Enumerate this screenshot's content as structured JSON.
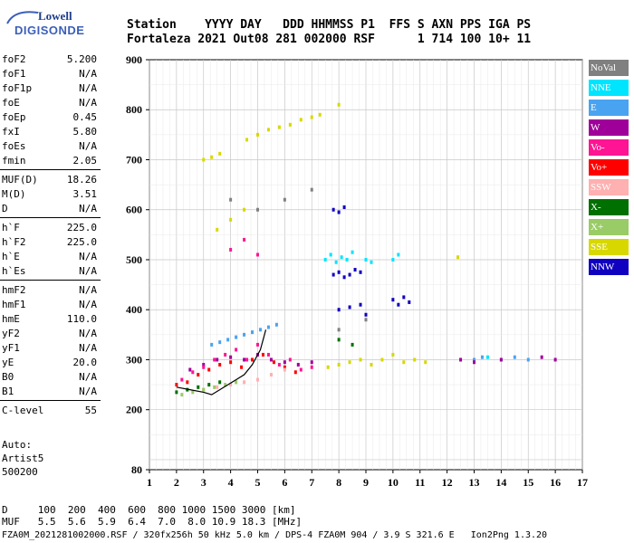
{
  "logo": {
    "brand": "Lowell",
    "name": "DIGISONDE"
  },
  "header": {
    "row1": "Station    YYYY DAY   DDD HHMMSS P1  FFS S AXN PPS IGA PS",
    "row2": "Fortaleza 2021 Out08 281 002000 RSF      1 714 100 10+ 11"
  },
  "params": {
    "group1": [
      {
        "k": "foF2",
        "v": "5.200"
      },
      {
        "k": "foF1",
        "v": "N/A"
      },
      {
        "k": "foF1p",
        "v": "N/A"
      },
      {
        "k": "foE",
        "v": "N/A"
      },
      {
        "k": "foEp",
        "v": "0.45"
      },
      {
        "k": "fxI",
        "v": "5.80"
      },
      {
        "k": "foEs",
        "v": "N/A"
      },
      {
        "k": "fmin",
        "v": "2.05"
      }
    ],
    "group2": [
      {
        "k": "MUF(D)",
        "v": "18.26"
      },
      {
        "k": "M(D)",
        "v": "3.51"
      },
      {
        "k": "D",
        "v": "N/A"
      }
    ],
    "group3": [
      {
        "k": "h`F",
        "v": "225.0"
      },
      {
        "k": "h`F2",
        "v": "225.0"
      },
      {
        "k": "h`E",
        "v": "N/A"
      },
      {
        "k": "h`Es",
        "v": "N/A"
      }
    ],
    "group4": [
      {
        "k": "hmF2",
        "v": "N/A"
      },
      {
        "k": "hmF1",
        "v": "N/A"
      },
      {
        "k": "hmE",
        "v": "110.0"
      },
      {
        "k": "yF2",
        "v": "N/A"
      },
      {
        "k": "yF1",
        "v": "N/A"
      },
      {
        "k": "yE",
        "v": "20.0"
      },
      {
        "k": "B0",
        "v": "N/A"
      },
      {
        "k": "B1",
        "v": "N/A"
      }
    ],
    "group5": [
      {
        "k": "C-level",
        "v": "55"
      }
    ]
  },
  "auto": {
    "l1": "Auto:",
    "l2": "Artist5",
    "l3": "500200"
  },
  "legend": [
    {
      "label": "NoVal",
      "color": "#808080"
    },
    {
      "label": "NNE",
      "color": "#00e5ff"
    },
    {
      "label": "E",
      "color": "#4aa3f0"
    },
    {
      "label": "W",
      "color": "#a0009a"
    },
    {
      "label": "Vo-",
      "color": "#ff1493"
    },
    {
      "label": "Vo+",
      "color": "#ff0000"
    },
    {
      "label": "SSW",
      "color": "#ffb0b0"
    },
    {
      "label": "X-",
      "color": "#007000"
    },
    {
      "label": "X+",
      "color": "#99cc66"
    },
    {
      "label": "SSE",
      "color": "#d8d800"
    },
    {
      "label": "NNW",
      "color": "#1000c0"
    }
  ],
  "footer": {
    "l1": "D     100  200  400  600  800 1000 1500 3000 [km]",
    "l2": "MUF   5.5  5.6  5.9  6.4  7.0  8.0 10.9 18.3 [MHz]",
    "l3": "FZA0M_2021281002000.RSF / 320fx256h 50 kHz 5.0 km / DPS-4 FZA0M 904 / 3.9 S 321.6 E   Ion2Png 1.3.20"
  },
  "chart_data": {
    "type": "scatter",
    "xlabel": "",
    "ylabel": "",
    "xlim": [
      1,
      17
    ],
    "ylim": [
      80,
      900
    ],
    "x_ticks": [
      1,
      2,
      3,
      4,
      5,
      6,
      7,
      8,
      9,
      10,
      11,
      12,
      13,
      14,
      15,
      16,
      17
    ],
    "y_ticks": [
      80,
      200,
      300,
      400,
      500,
      600,
      700,
      800,
      900
    ],
    "grid": true,
    "series": [
      {
        "name": "NNE",
        "color": "#00e5ff",
        "points": [
          [
            7.5,
            500
          ],
          [
            7.7,
            510
          ],
          [
            7.9,
            495
          ],
          [
            8.1,
            505
          ],
          [
            8.3,
            500
          ],
          [
            8.5,
            515
          ],
          [
            9.0,
            500
          ],
          [
            9.2,
            495
          ],
          [
            10.0,
            500
          ],
          [
            10.2,
            510
          ],
          [
            13.5,
            305
          ],
          [
            14.0,
            300
          ]
        ]
      },
      {
        "name": "E",
        "color": "#4aa3f0",
        "points": [
          [
            3.3,
            330
          ],
          [
            3.6,
            335
          ],
          [
            3.9,
            340
          ],
          [
            4.2,
            345
          ],
          [
            4.5,
            350
          ],
          [
            4.8,
            355
          ],
          [
            5.1,
            360
          ],
          [
            5.4,
            365
          ],
          [
            5.7,
            370
          ],
          [
            13.0,
            300
          ],
          [
            13.3,
            305
          ],
          [
            14.5,
            305
          ],
          [
            15.0,
            300
          ]
        ]
      },
      {
        "name": "W",
        "color": "#a0009a",
        "points": [
          [
            2.5,
            280
          ],
          [
            3.0,
            290
          ],
          [
            3.5,
            300
          ],
          [
            4.0,
            305
          ],
          [
            4.5,
            300
          ],
          [
            5.0,
            310
          ],
          [
            5.5,
            300
          ],
          [
            6.0,
            295
          ],
          [
            6.5,
            290
          ],
          [
            7.0,
            295
          ],
          [
            12.5,
            300
          ],
          [
            13.0,
            295
          ],
          [
            14.0,
            300
          ],
          [
            15.5,
            305
          ],
          [
            16.0,
            300
          ]
        ]
      },
      {
        "name": "Vo-",
        "color": "#ff1493",
        "points": [
          [
            2.2,
            260
          ],
          [
            2.6,
            275
          ],
          [
            3.0,
            285
          ],
          [
            3.4,
            300
          ],
          [
            3.8,
            310
          ],
          [
            4.2,
            320
          ],
          [
            4.6,
            300
          ],
          [
            5.0,
            330
          ],
          [
            5.4,
            310
          ],
          [
            5.8,
            290
          ],
          [
            6.2,
            300
          ],
          [
            6.6,
            280
          ],
          [
            7.0,
            285
          ],
          [
            4.0,
            520
          ],
          [
            4.5,
            540
          ],
          [
            5.0,
            510
          ]
        ]
      },
      {
        "name": "Vo+",
        "color": "#ff0000",
        "points": [
          [
            2.0,
            250
          ],
          [
            2.4,
            255
          ],
          [
            2.8,
            270
          ],
          [
            3.2,
            280
          ],
          [
            3.6,
            290
          ],
          [
            4.0,
            295
          ],
          [
            4.4,
            285
          ],
          [
            4.8,
            300
          ],
          [
            5.2,
            310
          ],
          [
            5.6,
            295
          ],
          [
            6.0,
            285
          ],
          [
            6.4,
            275
          ]
        ]
      },
      {
        "name": "SSW",
        "color": "#ffb0b0",
        "points": [
          [
            3.0,
            240
          ],
          [
            3.5,
            245
          ],
          [
            4.0,
            250
          ],
          [
            4.5,
            255
          ],
          [
            5.0,
            260
          ],
          [
            5.5,
            270
          ],
          [
            6.0,
            280
          ]
        ]
      },
      {
        "name": "X-",
        "color": "#007000",
        "points": [
          [
            2.0,
            235
          ],
          [
            2.4,
            240
          ],
          [
            2.8,
            245
          ],
          [
            3.2,
            250
          ],
          [
            3.6,
            255
          ],
          [
            8.0,
            340
          ],
          [
            8.5,
            330
          ]
        ]
      },
      {
        "name": "X+",
        "color": "#99cc66",
        "points": [
          [
            2.2,
            230
          ],
          [
            2.6,
            235
          ],
          [
            3.0,
            240
          ],
          [
            3.4,
            245
          ],
          [
            3.8,
            250
          ],
          [
            4.2,
            255
          ]
        ]
      },
      {
        "name": "SSE",
        "color": "#d8d800",
        "points": [
          [
            3.0,
            700
          ],
          [
            3.3,
            705
          ],
          [
            3.6,
            712
          ],
          [
            4.6,
            740
          ],
          [
            5.0,
            750
          ],
          [
            5.4,
            760
          ],
          [
            5.8,
            765
          ],
          [
            6.2,
            770
          ],
          [
            6.6,
            780
          ],
          [
            7.0,
            785
          ],
          [
            7.3,
            790
          ],
          [
            8.0,
            810
          ],
          [
            7.6,
            285
          ],
          [
            8.0,
            290
          ],
          [
            8.4,
            295
          ],
          [
            8.8,
            300
          ],
          [
            9.2,
            290
          ],
          [
            9.6,
            300
          ],
          [
            10.0,
            310
          ],
          [
            10.4,
            295
          ],
          [
            10.8,
            300
          ],
          [
            11.2,
            295
          ],
          [
            12.4,
            505
          ],
          [
            3.5,
            560
          ],
          [
            4.0,
            580
          ],
          [
            4.5,
            600
          ]
        ]
      },
      {
        "name": "NNW",
        "color": "#1000c0",
        "points": [
          [
            7.8,
            600
          ],
          [
            8.0,
            595
          ],
          [
            8.2,
            605
          ],
          [
            7.8,
            470
          ],
          [
            8.0,
            475
          ],
          [
            8.2,
            465
          ],
          [
            8.4,
            470
          ],
          [
            8.6,
            480
          ],
          [
            8.8,
            475
          ],
          [
            8.0,
            400
          ],
          [
            8.4,
            405
          ],
          [
            8.8,
            410
          ],
          [
            9.0,
            390
          ],
          [
            10.0,
            420
          ],
          [
            10.2,
            410
          ],
          [
            10.4,
            425
          ],
          [
            10.6,
            415
          ]
        ]
      },
      {
        "name": "NoVal",
        "color": "#808080",
        "points": [
          [
            4.0,
            620
          ],
          [
            5.0,
            600
          ],
          [
            6.0,
            620
          ],
          [
            7.0,
            640
          ],
          [
            8.0,
            360
          ],
          [
            9.0,
            380
          ]
        ]
      }
    ],
    "trace": {
      "name": "",
      "color": "#000000",
      "points": [
        [
          2.0,
          245
        ],
        [
          2.5,
          240
        ],
        [
          3.0,
          235
        ],
        [
          3.3,
          230
        ],
        [
          3.6,
          240
        ],
        [
          3.9,
          250
        ],
        [
          4.2,
          260
        ],
        [
          4.5,
          270
        ],
        [
          4.8,
          290
        ],
        [
          5.1,
          320
        ],
        [
          5.3,
          360
        ]
      ]
    }
  }
}
